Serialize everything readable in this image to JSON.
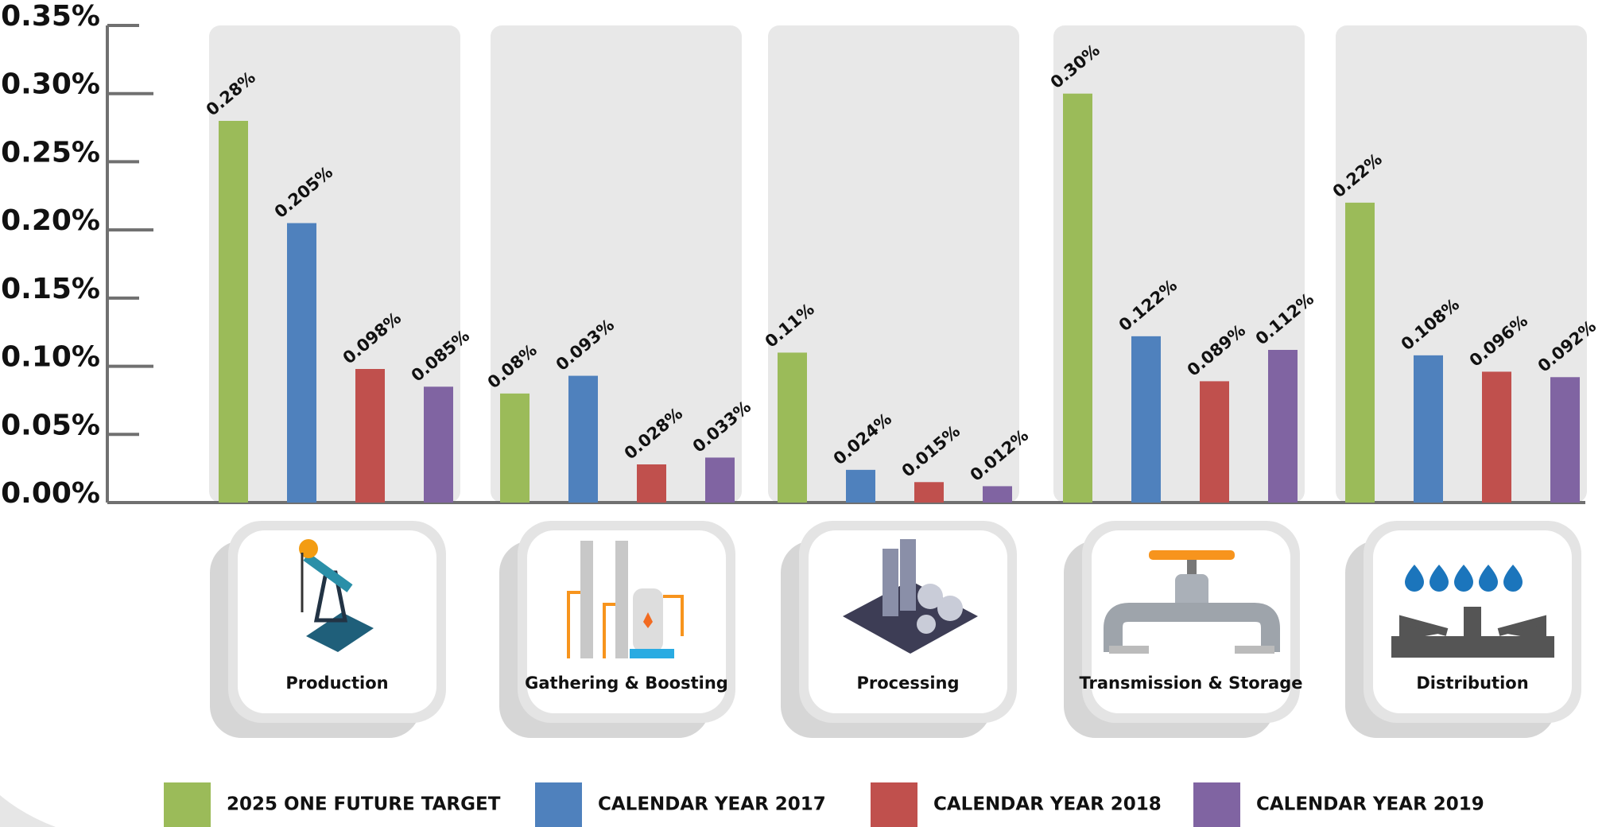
{
  "chart_data": {
    "type": "bar",
    "categories": [
      "Production",
      "Gathering & Boosting",
      "Processing",
      "Transmission & Storage",
      "Distribution"
    ],
    "series": [
      {
        "name": "2025 ONE FUTURE TARGET",
        "color": "#9bbb59",
        "values": [
          0.28,
          0.08,
          0.11,
          0.3,
          0.22
        ],
        "value_labels": [
          "0.28%",
          "0.08%",
          "0.11%",
          "0.30%",
          "0.22%"
        ]
      },
      {
        "name": "CALENDAR YEAR 2017",
        "color": "#4f81bd",
        "values": [
          0.205,
          0.093,
          0.024,
          0.122,
          0.108
        ],
        "value_labels": [
          "0.205%",
          "0.093%",
          "0.024%",
          "0.122%",
          "0.108%"
        ]
      },
      {
        "name": "CALENDAR YEAR 2018",
        "color": "#c0504d",
        "values": [
          0.098,
          0.028,
          0.015,
          0.089,
          0.096
        ],
        "value_labels": [
          "0.098%",
          "0.028%",
          "0.015%",
          "0.089%",
          "0.096%"
        ]
      },
      {
        "name": "CALENDAR YEAR 2019",
        "color": "#8064a2",
        "values": [
          0.085,
          0.033,
          0.012,
          0.112,
          0.092
        ],
        "value_labels": [
          "0.085%",
          "0.033%",
          "0.012%",
          "0.112%",
          "0.092%"
        ]
      }
    ],
    "ylim": [
      0,
      0.35
    ],
    "yticks": [
      {
        "value": 0,
        "label": "0.00%"
      },
      {
        "value": 0.05,
        "label": "0.05%"
      },
      {
        "value": 0.1,
        "label": "0.10%"
      },
      {
        "value": 0.15,
        "label": "0.15%"
      },
      {
        "value": 0.2,
        "label": "0.20%"
      },
      {
        "value": 0.25,
        "label": "0.25%"
      },
      {
        "value": 0.3,
        "label": "0.30%"
      },
      {
        "value": 0.35,
        "label": "0.35%"
      }
    ]
  }
}
